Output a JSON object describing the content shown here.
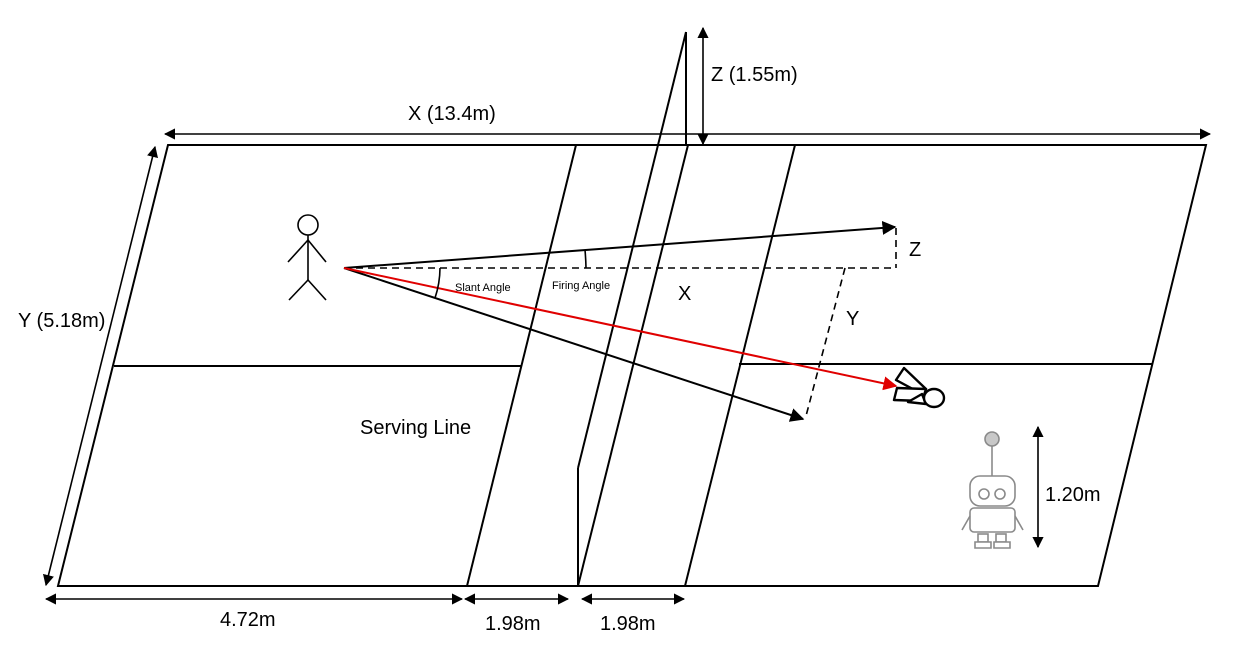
{
  "dimensions": {
    "length_label": "X (13.4m)",
    "width_label": "Y (5.18m)",
    "net_height_label": "Z (1.55m)",
    "back_section_label": "4.72m",
    "service_section_left_label": "1.98m",
    "service_section_right_label": "1.98m",
    "robot_height_label": "1.20m"
  },
  "court": {
    "serving_line_label": "Serving Line"
  },
  "angles": {
    "slant_label": "Slant Angle",
    "firing_label": "Firing Angle"
  },
  "axes": {
    "x_label": "X",
    "y_label": "Y",
    "z_label": "Z"
  },
  "colors": {
    "trajectory": "#e00000",
    "lines": "#000000",
    "robot": "#8a8a8a"
  },
  "icons": {
    "player": "stick-figure-icon",
    "shuttlecock": "shuttlecock-icon",
    "robot": "robot-icon"
  }
}
